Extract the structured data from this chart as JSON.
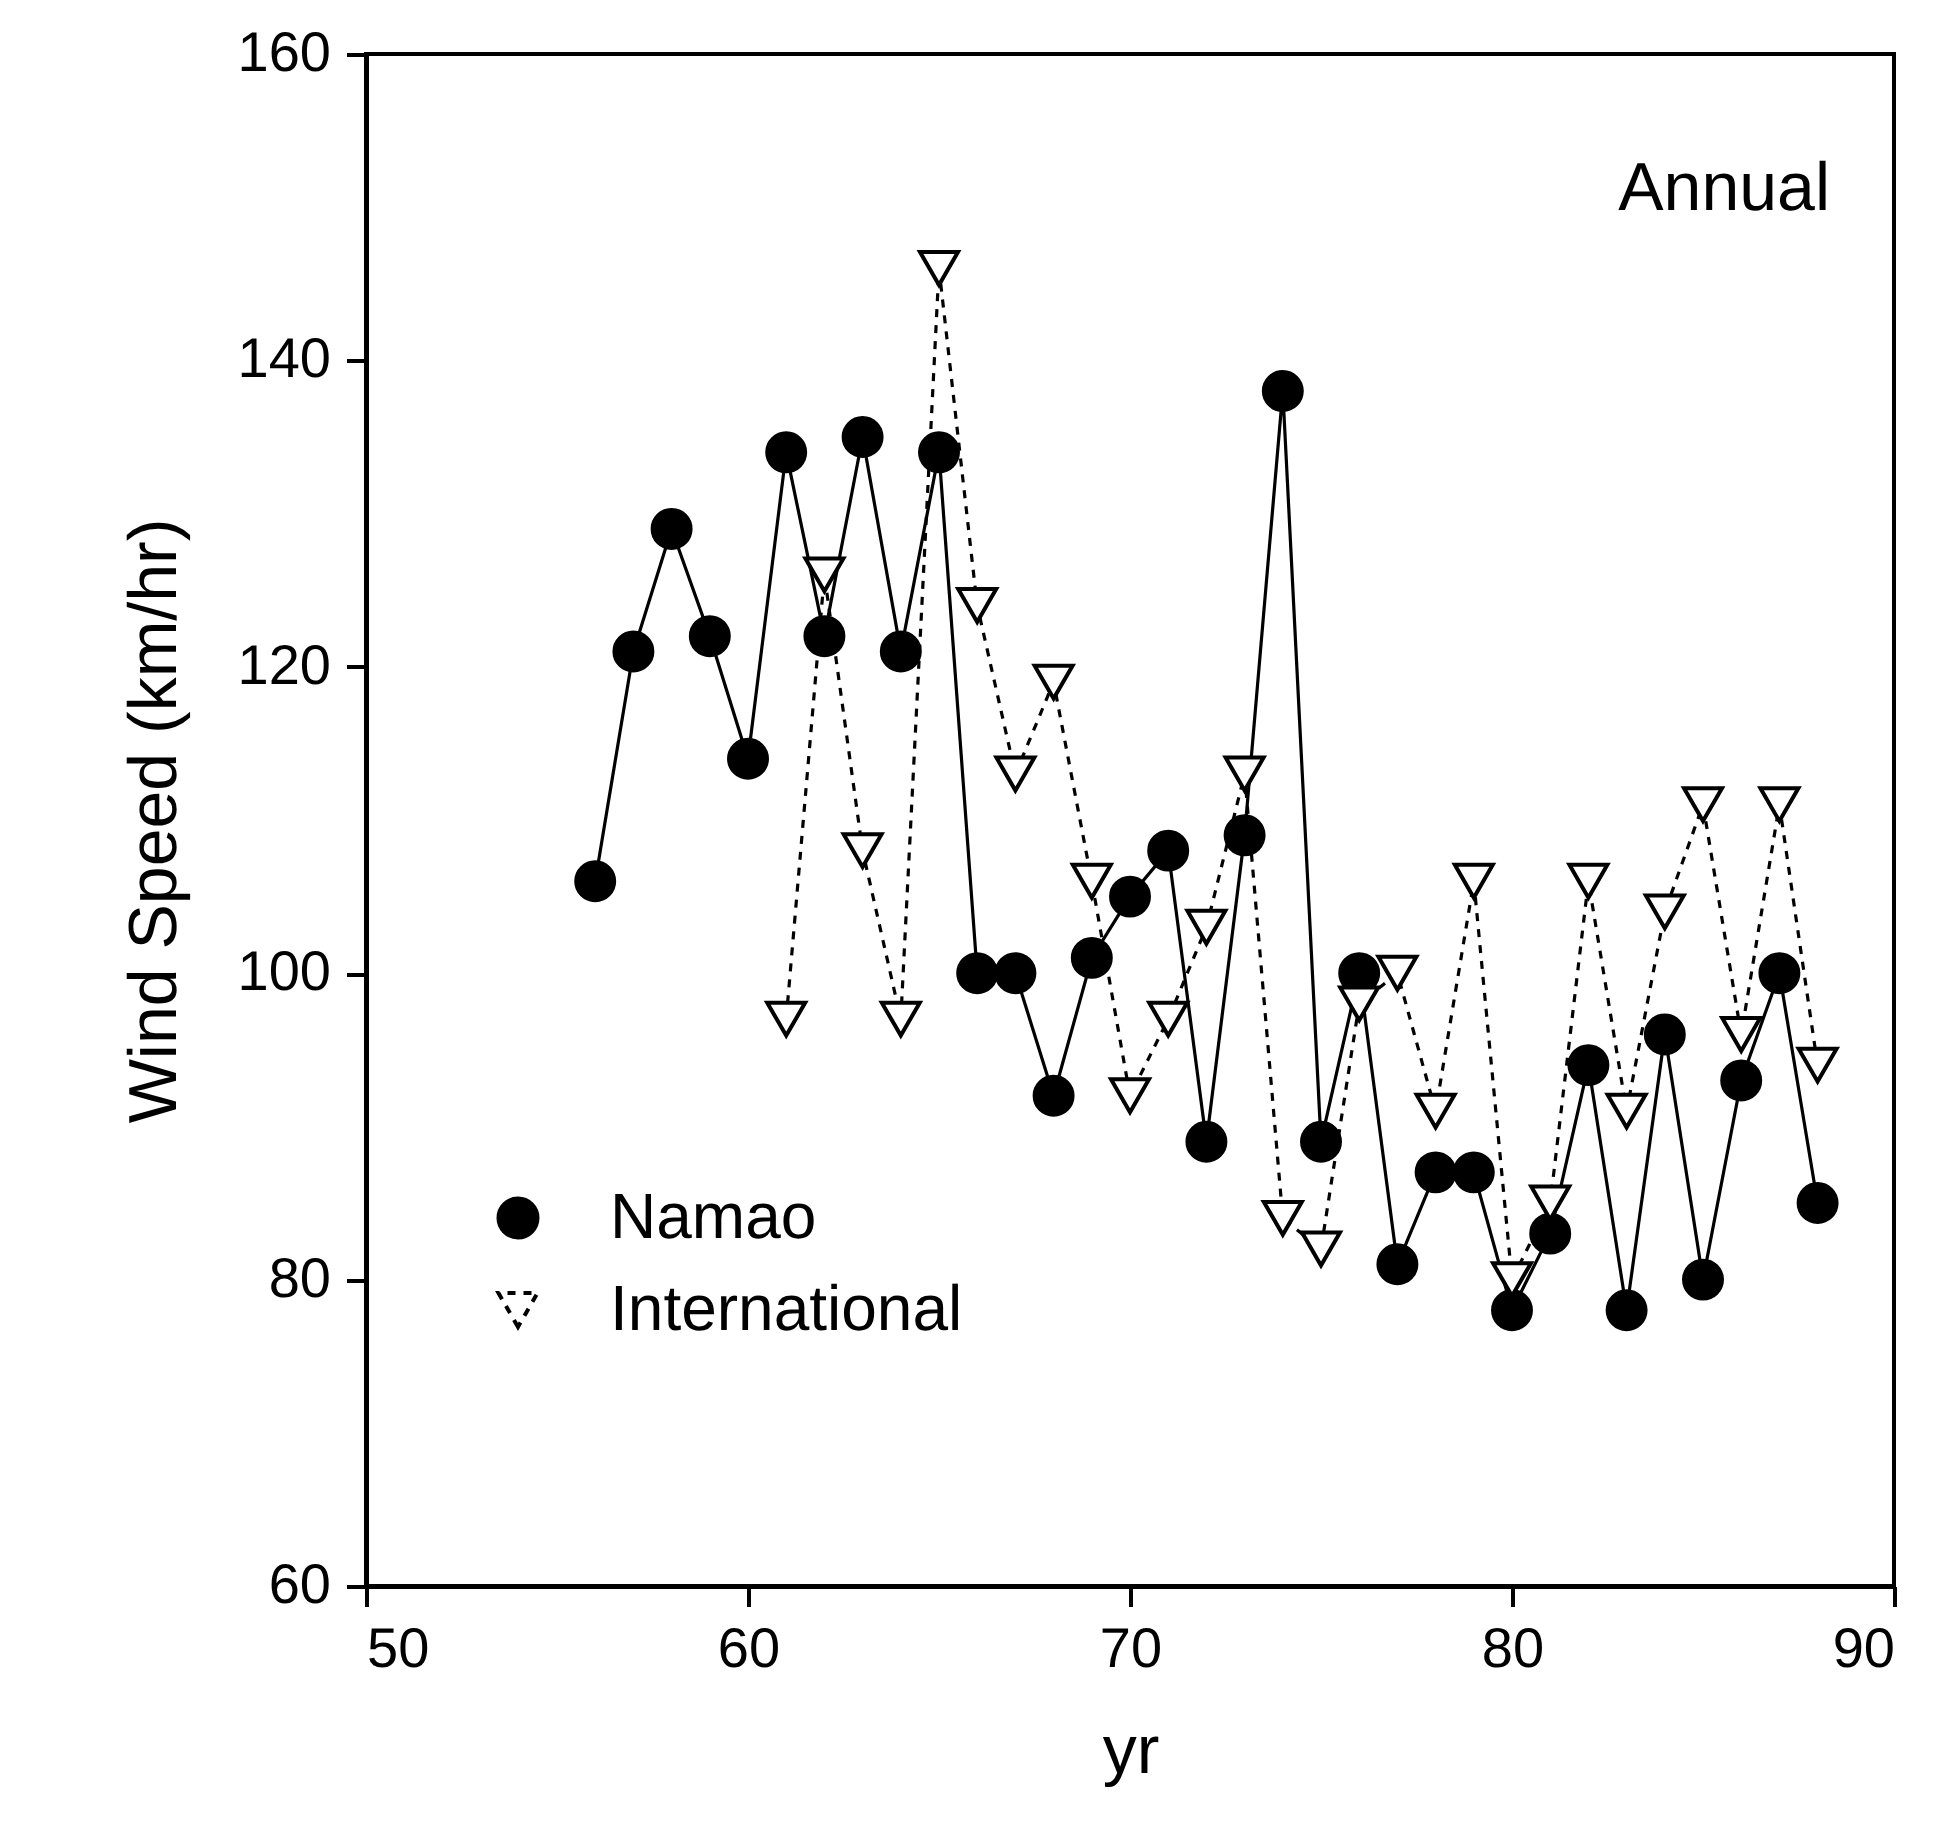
{
  "chart_data": {
    "type": "line",
    "xlabel": "yr",
    "ylabel": "Wind Speed (km/hr)",
    "annotations": [
      "Annual"
    ],
    "xlim": [
      50,
      90
    ],
    "xticks": [
      50,
      60,
      70,
      80,
      90
    ],
    "ylim": [
      60,
      160
    ],
    "yticks": [
      60,
      80,
      100,
      120,
      140,
      160
    ],
    "grid": false,
    "legend": "bottom left",
    "series": [
      {
        "name": "Namao",
        "color": "#000000",
        "marker": "circle",
        "line_style": "solid",
        "x": [
          56,
          57,
          58,
          59,
          60,
          61,
          62,
          63,
          64,
          65,
          66,
          67,
          68,
          69,
          70,
          71,
          72,
          73,
          74,
          75,
          76,
          77,
          78,
          79,
          80,
          81,
          82,
          83,
          84,
          85,
          86,
          87,
          88
        ],
        "values": [
          106,
          121,
          129,
          122,
          114,
          134,
          122,
          135,
          121,
          134,
          100,
          100,
          92,
          101,
          105,
          108,
          89,
          109,
          138,
          89,
          100,
          81,
          87,
          87,
          78,
          83,
          94,
          78,
          96,
          80,
          93,
          100,
          85
        ]
      },
      {
        "name": "International",
        "color": "#000000",
        "marker": "triangle",
        "line_style": "dashed",
        "x": [
          61,
          62,
          63,
          64,
          65,
          66,
          67,
          68,
          69,
          70,
          71,
          72,
          73,
          74,
          75,
          76,
          77,
          78,
          79,
          80,
          81,
          82,
          83,
          84,
          85,
          86,
          87,
          88
        ],
        "values": [
          97,
          126,
          108,
          97,
          146,
          124,
          113,
          119,
          106,
          92,
          97,
          103,
          113,
          84,
          82,
          98,
          100,
          91,
          106,
          80,
          85,
          106,
          91,
          104,
          111,
          96,
          111,
          94
        ]
      }
    ]
  }
}
